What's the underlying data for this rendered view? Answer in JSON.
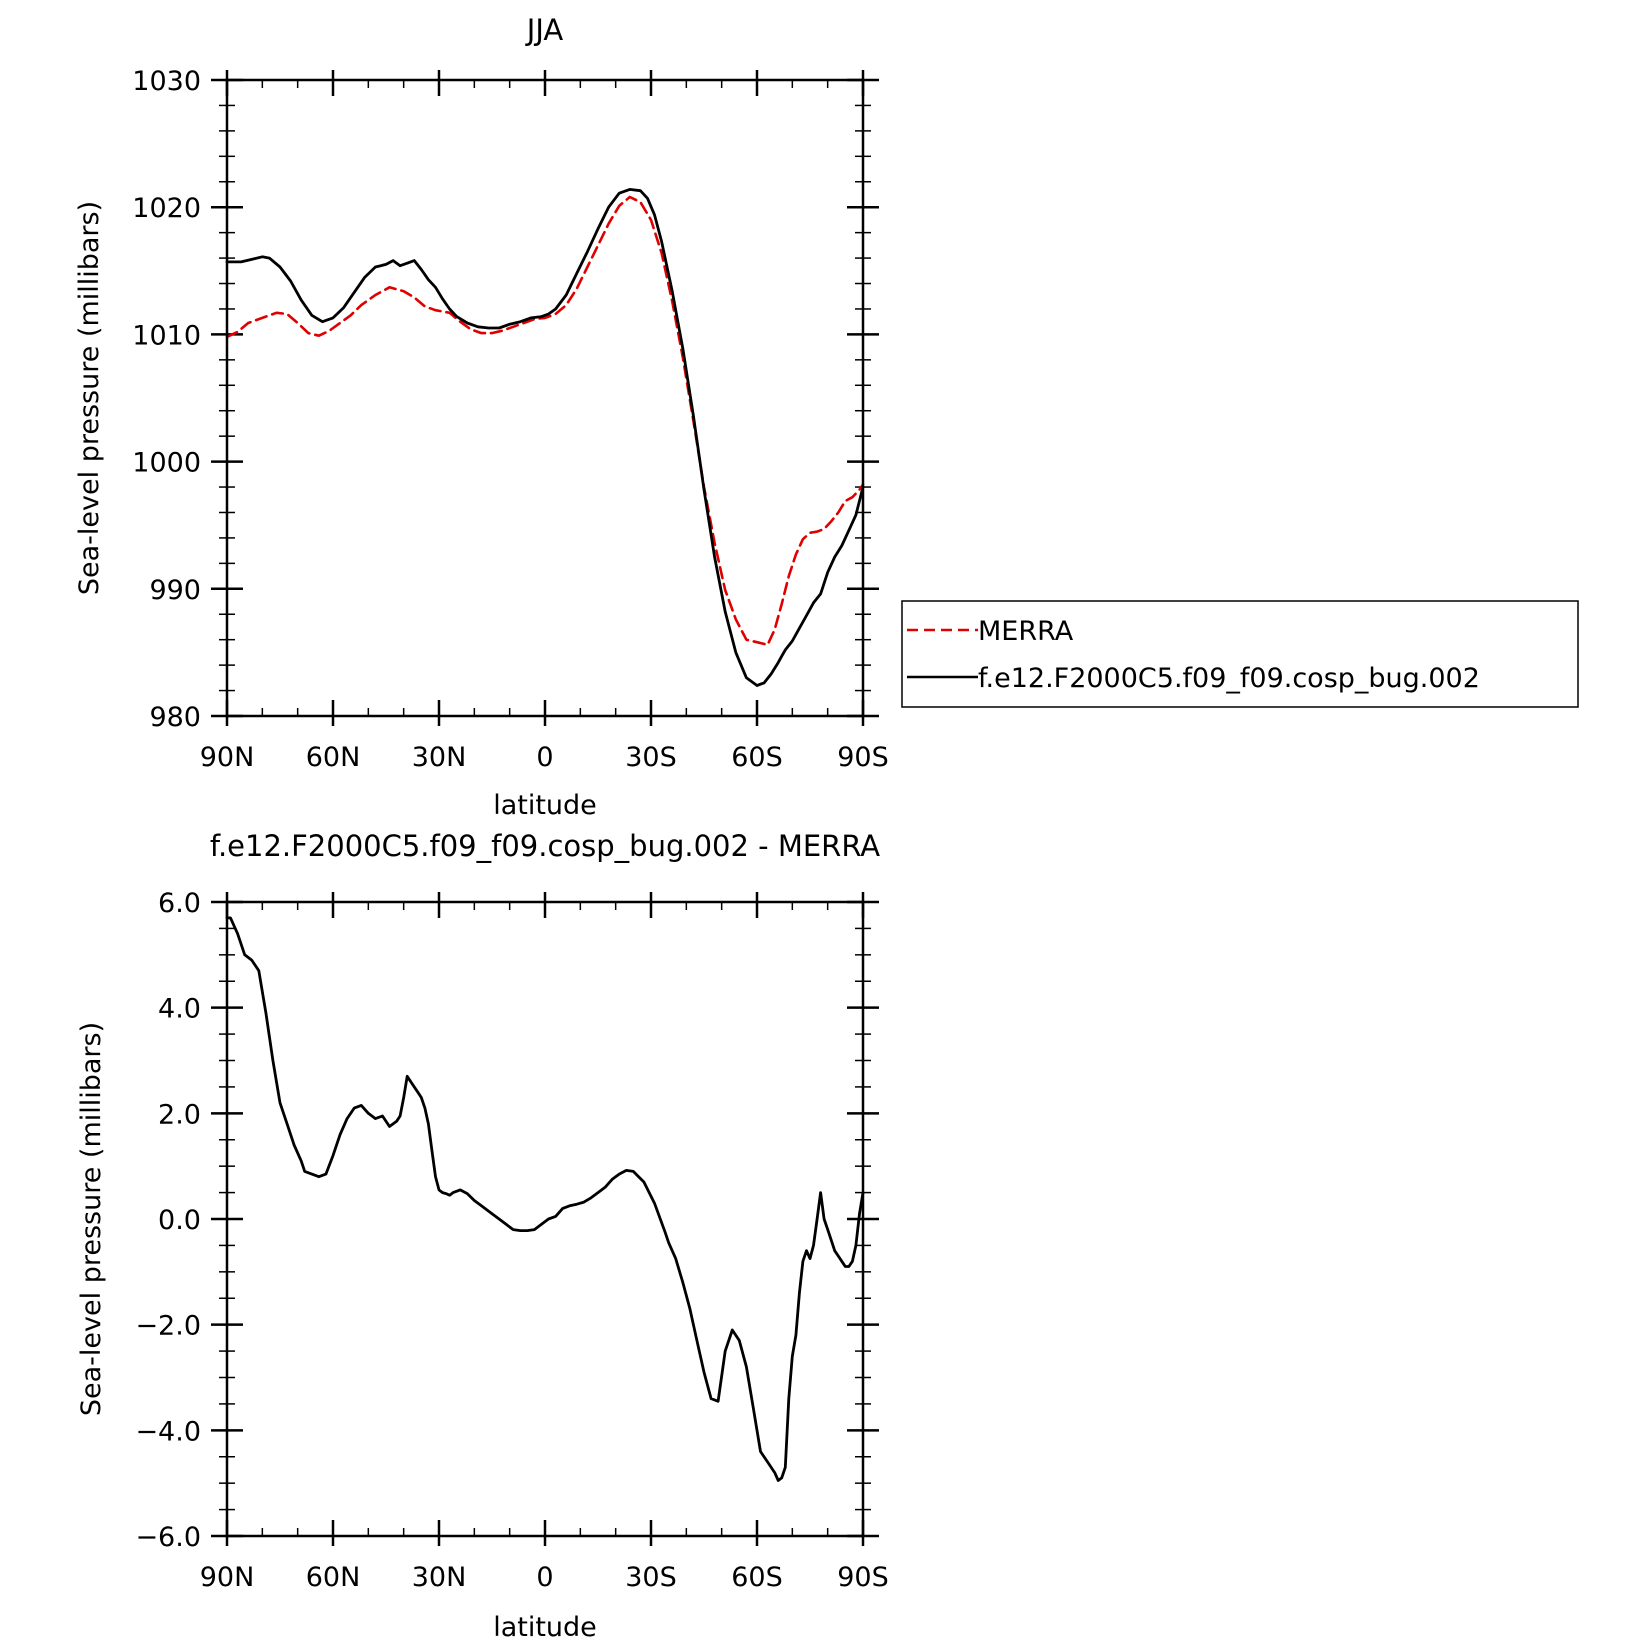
{
  "chart_data": [
    {
      "type": "line",
      "title": "JJA",
      "xlabel": "latitude",
      "ylabel": "Sea-level pressure (millibars)",
      "xlim": [
        90,
        -90
      ],
      "ylim": [
        980,
        1030
      ],
      "x_ticks": [
        90,
        60,
        30,
        0,
        -30,
        -60,
        -90
      ],
      "x_tick_labels": [
        "90N",
        "60N",
        "30N",
        "0",
        "30S",
        "60S",
        "90S"
      ],
      "y_ticks": [
        980,
        990,
        1000,
        1010,
        1020,
        1030
      ],
      "y_tick_labels": [
        "980",
        "990",
        "1000",
        "1010",
        "1020",
        "1030"
      ],
      "legend": "right",
      "series": [
        {
          "name": "MERRA",
          "color": "#e00000",
          "dashed": true,
          "x": [
            90,
            87,
            84,
            80,
            76,
            73,
            70,
            67,
            64,
            61,
            58,
            55,
            52,
            48,
            44,
            40,
            37,
            34,
            31,
            27,
            24,
            21,
            18,
            15,
            12,
            9,
            6,
            3,
            0,
            -3,
            -6,
            -9,
            -12,
            -15,
            -18,
            -21,
            -24,
            -27,
            -30,
            -33,
            -36,
            -39,
            -42,
            -45,
            -48,
            -51,
            -54,
            -57,
            -60,
            -63,
            -65,
            -67,
            -69,
            -71,
            -73,
            -75,
            -77,
            -79,
            -81,
            -83,
            -85,
            -87,
            -89,
            -90
          ],
          "y": [
            1009.8,
            1010.2,
            1010.9,
            1011.3,
            1011.7,
            1011.6,
            1010.9,
            1010.1,
            1009.9,
            1010.3,
            1010.9,
            1011.5,
            1012.3,
            1013.1,
            1013.7,
            1013.4,
            1012.9,
            1012.2,
            1011.9,
            1011.7,
            1011.0,
            1010.4,
            1010.1,
            1010.1,
            1010.3,
            1010.6,
            1010.9,
            1011.2,
            1011.3,
            1011.6,
            1012.3,
            1013.6,
            1015.3,
            1017.0,
            1018.7,
            1020.1,
            1020.8,
            1020.4,
            1019.0,
            1016.4,
            1012.6,
            1008.2,
            1003.2,
            998.0,
            993.6,
            989.9,
            987.6,
            986.0,
            985.8,
            985.6,
            986.8,
            988.8,
            991.0,
            992.7,
            993.9,
            994.4,
            994.5,
            994.7,
            995.3,
            996.0,
            996.9,
            997.2,
            997.8,
            998.2
          ]
        },
        {
          "name": "f.e12.F2000C5.f09_f09.cosp_bug.002",
          "color": "#000000",
          "dashed": false,
          "x": [
            90,
            86,
            83,
            80,
            78,
            75,
            72,
            69,
            66,
            63,
            60,
            57,
            54,
            51,
            48,
            45,
            43,
            41,
            39,
            37,
            35,
            33,
            31,
            29,
            27,
            25,
            22,
            19,
            16,
            13,
            10,
            7,
            4,
            1,
            -1,
            -3,
            -6,
            -9,
            -12,
            -15,
            -18,
            -21,
            -24,
            -27,
            -29,
            -31,
            -33,
            -36,
            -39,
            -42,
            -45,
            -48,
            -51,
            -54,
            -57,
            -60,
            -62,
            -64,
            -66,
            -67,
            -68,
            -70,
            -72,
            -74,
            -76,
            -78,
            -80,
            -82,
            -84,
            -86,
            -88,
            -90
          ],
          "y": [
            1015.7,
            1015.7,
            1015.9,
            1016.1,
            1016.0,
            1015.3,
            1014.2,
            1012.7,
            1011.5,
            1011.0,
            1011.3,
            1012.1,
            1013.3,
            1014.5,
            1015.3,
            1015.5,
            1015.8,
            1015.4,
            1015.6,
            1015.8,
            1015.1,
            1014.3,
            1013.7,
            1012.8,
            1012.0,
            1011.4,
            1010.9,
            1010.6,
            1010.5,
            1010.5,
            1010.8,
            1011.0,
            1011.3,
            1011.4,
            1011.6,
            1012.0,
            1013.1,
            1014.8,
            1016.5,
            1018.3,
            1020.0,
            1021.1,
            1021.4,
            1021.3,
            1020.7,
            1019.4,
            1017.3,
            1013.4,
            1008.9,
            1003.6,
            997.8,
            992.5,
            988.2,
            985.0,
            983.0,
            982.4,
            982.6,
            983.3,
            984.2,
            984.7,
            985.2,
            985.9,
            986.9,
            987.9,
            988.9,
            989.6,
            991.3,
            992.5,
            993.4,
            994.6,
            995.8,
            998.0
          ]
        }
      ]
    },
    {
      "type": "line",
      "title": "f.e12.F2000C5.f09_f09.cosp_bug.002 - MERRA",
      "xlabel": "latitude",
      "ylabel": "Sea-level pressure (millibars)",
      "xlim": [
        90,
        -90
      ],
      "ylim": [
        -6,
        6
      ],
      "x_ticks": [
        90,
        60,
        30,
        0,
        -30,
        -60,
        -90
      ],
      "x_tick_labels": [
        "90N",
        "60N",
        "30N",
        "0",
        "30S",
        "60S",
        "90S"
      ],
      "y_ticks": [
        -6,
        -4,
        -2,
        0,
        2,
        4,
        6
      ],
      "y_tick_labels": [
        "−6.0",
        "−4.0",
        "−2.0",
        "0.0",
        "2.0",
        "4.0",
        "6.0"
      ],
      "series": [
        {
          "color": "#000000",
          "dashed": false,
          "x": [
            90,
            89,
            87,
            85,
            83,
            81,
            79,
            77,
            75,
            73,
            71,
            69,
            68,
            66,
            64,
            62,
            60,
            58,
            56,
            54,
            52,
            50,
            48,
            46,
            44,
            42,
            41,
            40,
            39,
            38,
            36,
            35,
            34,
            33,
            32,
            31,
            30,
            29,
            28,
            27,
            26,
            24,
            22,
            20,
            18,
            17,
            15,
            13,
            11,
            9,
            7,
            5,
            3,
            1,
            -1,
            -3,
            -5,
            -7,
            -9,
            -11,
            -13,
            -15,
            -17,
            -19,
            -21,
            -23,
            -25,
            -28,
            -31,
            -34,
            -35,
            -37,
            -39,
            -41,
            -43,
            -45,
            -47,
            -49,
            -51,
            -53,
            -55,
            -57,
            -59,
            -61,
            -63,
            -65,
            -66,
            -67,
            -68,
            -69,
            -70,
            -71,
            -72,
            -73,
            -74,
            -75,
            -76,
            -77,
            -78,
            -79,
            -80,
            -81,
            -82,
            -83,
            -84,
            -85,
            -86,
            -87,
            -88,
            -89,
            -90
          ],
          "y": [
            5.7,
            5.7,
            5.4,
            5.0,
            4.9,
            4.7,
            3.9,
            3.0,
            2.2,
            1.8,
            1.4,
            1.1,
            0.9,
            0.85,
            0.8,
            0.85,
            1.2,
            1.6,
            1.9,
            2.1,
            2.15,
            2.0,
            1.9,
            1.95,
            1.75,
            1.85,
            1.95,
            2.3,
            2.7,
            2.6,
            2.4,
            2.3,
            2.1,
            1.8,
            1.3,
            0.8,
            0.55,
            0.5,
            0.48,
            0.45,
            0.5,
            0.55,
            0.48,
            0.35,
            0.25,
            0.2,
            0.1,
            0.0,
            -0.1,
            -0.2,
            -0.22,
            -0.22,
            -0.2,
            -0.1,
            0.0,
            0.05,
            0.2,
            0.25,
            0.28,
            0.32,
            0.4,
            0.5,
            0.6,
            0.75,
            0.85,
            0.92,
            0.9,
            0.7,
            0.3,
            -0.25,
            -0.45,
            -0.75,
            -1.2,
            -1.7,
            -2.3,
            -2.9,
            -3.4,
            -3.45,
            -2.5,
            -2.1,
            -2.3,
            -2.8,
            -3.6,
            -4.4,
            -4.6,
            -4.8,
            -4.95,
            -4.9,
            -4.7,
            -3.4,
            -2.6,
            -2.2,
            -1.4,
            -0.8,
            -0.6,
            -0.75,
            -0.5,
            0.0,
            0.5,
            0.0,
            -0.2,
            -0.4,
            -0.6,
            -0.7,
            -0.8,
            -0.9,
            -0.9,
            -0.8,
            -0.5,
            0.1,
            0.5
          ]
        }
      ]
    }
  ]
}
